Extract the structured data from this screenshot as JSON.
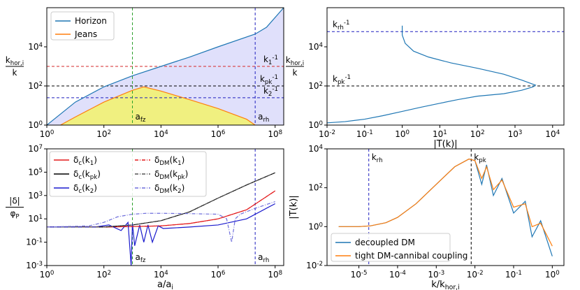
{
  "chart_data": [
    {
      "id": "tl",
      "type": "line",
      "xscale": "log",
      "yscale": "log",
      "xlim": [
        1,
        200000000
      ],
      "ylim": [
        1,
        1000000
      ],
      "xticks": [
        {
          "v": 1,
          "l": "10^0"
        },
        {
          "v": 100,
          "l": "10^2"
        },
        {
          "v": 10000,
          "l": "10^4"
        },
        {
          "v": 1000000,
          "l": "10^6"
        },
        {
          "v": 100000000,
          "l": "10^8"
        }
      ],
      "yticks": [
        {
          "v": 1,
          "l": "10^0"
        },
        {
          "v": 100,
          "l": "10^2"
        },
        {
          "v": 10000,
          "l": "10^4"
        }
      ],
      "ylabel_num": "k_{hor,i}",
      "ylabel_den": "k",
      "legend": {
        "position": "top-left",
        "entries": [
          {
            "label": "Horizon",
            "color": "#1f77b4"
          },
          {
            "label": "Jeans",
            "color": "#ff7f0e"
          }
        ]
      },
      "series": [
        {
          "name": "Horizon",
          "color": "#1f77b4",
          "fill": "#e0e0fb",
          "x": [
            1,
            10,
            100,
            1000,
            10000,
            100000,
            1000000,
            20000000,
            50000000,
            200000000
          ],
          "y": [
            1,
            15,
            90,
            330,
            1000,
            3000,
            10000,
            45000,
            100000,
            1000000
          ]
        },
        {
          "name": "Jeans",
          "color": "#ff7f0e",
          "fill": "#f0f080",
          "x": [
            3,
            10,
            100,
            1000,
            2500,
            10000,
            100000,
            1000000,
            10000000,
            20000000
          ],
          "y": [
            1,
            2.6,
            15,
            60,
            90,
            55,
            20,
            7,
            2,
            1
          ]
        }
      ],
      "hlines": [
        {
          "y": 1000,
          "color": "#d62728",
          "label": "k_1^{-1}"
        },
        {
          "y": 100,
          "color": "#000000",
          "label": "k_{pk}^{-1}"
        },
        {
          "y": 25,
          "color": "#1f1fbf",
          "label": "k_2^{-1}"
        }
      ],
      "vlines": [
        {
          "x": 1000,
          "color": "#2ca02c",
          "label": "a_{fz}"
        },
        {
          "x": 20000000,
          "color": "#1f1fbf",
          "label": "a_{rh}"
        }
      ]
    },
    {
      "id": "tr",
      "type": "line",
      "xscale": "log",
      "yscale": "log",
      "xlim": [
        0.01,
        20000
      ],
      "ylim": [
        1,
        1000000
      ],
      "xticks": [
        {
          "v": 0.01,
          "l": "10^{-2}"
        },
        {
          "v": 0.1,
          "l": "10^{-1}"
        },
        {
          "v": 1,
          "l": "10^0"
        },
        {
          "v": 10,
          "l": "10^1"
        },
        {
          "v": 100,
          "l": "10^2"
        },
        {
          "v": 1000,
          "l": "10^3"
        },
        {
          "v": 10000,
          "l": "10^4"
        }
      ],
      "yticks": [
        {
          "v": 1,
          "l": "10^0"
        },
        {
          "v": 100,
          "l": "10^2"
        },
        {
          "v": 10000,
          "l": "10^4"
        }
      ],
      "xlabel": "|T(k)|",
      "ylabel_num": "k_{hor,i}",
      "ylabel_den": "k",
      "series": [
        {
          "name": "|T(k)|",
          "color": "#1f77b4",
          "x": [
            1,
            1,
            1.2,
            2,
            5,
            20,
            100,
            500,
            1500,
            3500,
            3000,
            1500,
            500,
            100,
            30,
            10,
            3,
            1,
            0.3,
            0.1,
            0.03,
            0.01
          ],
          "y": [
            120000,
            40000,
            15000,
            6000,
            3000,
            1500,
            800,
            400,
            200,
            110,
            90,
            60,
            40,
            30,
            20,
            13,
            8,
            5,
            3,
            2,
            1.5,
            1.3
          ]
        }
      ],
      "hlines": [
        {
          "y": 60000,
          "color": "#1f1fbf",
          "label": "k_{rh}^{-1}"
        },
        {
          "y": 100,
          "color": "#000000",
          "label": "k_{pk}^{-1}"
        }
      ]
    },
    {
      "id": "bl",
      "type": "line",
      "xscale": "log",
      "yscale": "log",
      "xlim": [
        1,
        200000000
      ],
      "ylim": [
        0.001,
        10000000
      ],
      "xticks": [
        {
          "v": 1,
          "l": "10^0"
        },
        {
          "v": 100,
          "l": "10^2"
        },
        {
          "v": 10000,
          "l": "10^4"
        },
        {
          "v": 1000000,
          "l": "10^6"
        },
        {
          "v": 100000000,
          "l": "10^8"
        }
      ],
      "yticks": [
        {
          "v": 0.001,
          "l": "10^{-3}"
        },
        {
          "v": 0.1,
          "l": "10^{-1}"
        },
        {
          "v": 10,
          "l": "10^1"
        },
        {
          "v": 1000,
          "l": "10^3"
        },
        {
          "v": 100000,
          "l": "10^5"
        },
        {
          "v": 10000000,
          "l": "10^7"
        }
      ],
      "xlabel": "a/a_i",
      "ylabel_num": "|δ|",
      "ylabel_den": "φ_P",
      "legend": {
        "position": "top-left",
        "entries": [
          {
            "label": "δ_c(k_1)",
            "color": "#e31a1c",
            "dash": ""
          },
          {
            "label": "δ_c(k_{pk})",
            "color": "#000000",
            "dash": ""
          },
          {
            "label": "δ_c(k_2)",
            "color": "#1a1acd",
            "dash": ""
          },
          {
            "label": "δ_{DM}(k_1)",
            "color": "#e31a1c",
            "dash": "5,2,1,2"
          },
          {
            "label": "δ_{DM}(k_{pk})",
            "color": "#555555",
            "dash": "5,2,1,2"
          },
          {
            "label": "δ_{DM}(k_2)",
            "color": "#6f6fdc",
            "dash": "5,2,1,2"
          }
        ]
      },
      "series": [
        {
          "name": "δ_c(k_1)",
          "color": "#e31a1c",
          "dash": "",
          "x": [
            1,
            100,
            1000,
            10000,
            100000,
            1000000,
            10000000,
            100000000
          ],
          "y": [
            2,
            2,
            2.2,
            2.5,
            4,
            10,
            60,
            2500
          ]
        },
        {
          "name": "δ_c(k_pk)",
          "color": "#000000",
          "dash": "",
          "x": [
            1,
            100,
            1000,
            10000,
            100000,
            1000000,
            10000000,
            100000000
          ],
          "y": [
            2,
            2,
            3,
            7,
            40,
            600,
            8000,
            90000
          ]
        },
        {
          "name": "δ_c(k_2)",
          "color": "#1a1acd",
          "dash": "",
          "x": [
            1,
            50,
            150,
            400,
            700,
            900,
            1000,
            1200,
            1800,
            2500,
            3500,
            5000,
            8000,
            12000,
            20000,
            100000,
            1000000,
            10000000,
            100000000
          ],
          "y": [
            2,
            2,
            3,
            1,
            5,
            0.001,
            4,
            0.05,
            3,
            0.1,
            3,
            0.1,
            2.5,
            1.5,
            1.6,
            2,
            3,
            10,
            200
          ]
        },
        {
          "name": "δ_DM(k_1)",
          "color": "#e31a1c",
          "dash": "5,2,1,2",
          "x": [
            1,
            100,
            1000,
            10000,
            100000,
            1000000,
            10000000,
            100000000
          ],
          "y": [
            2,
            2,
            2.2,
            2.5,
            4,
            10,
            60,
            2500
          ]
        },
        {
          "name": "δ_DM(k_pk)",
          "color": "#555555",
          "dash": "5,2,1,2",
          "x": [
            1,
            100,
            1000,
            10000,
            100000,
            1000000,
            10000000,
            100000000
          ],
          "y": [
            2,
            2,
            3,
            7,
            40,
            600,
            8000,
            90000
          ]
        },
        {
          "name": "δ_DM(k_2)",
          "color": "#6f6fdc",
          "dash": "5,2,1,2",
          "x": [
            1,
            30,
            100,
            300,
            1000,
            3000,
            10000,
            100000,
            1000000,
            2000000,
            3000000,
            4000000,
            6000000,
            20000000,
            100000000
          ],
          "y": [
            2,
            2.5,
            5,
            15,
            25,
            30,
            30,
            28,
            25,
            10,
            0.1,
            10,
            25,
            80,
            300
          ]
        }
      ],
      "vlines": [
        {
          "x": 1000,
          "color": "#2ca02c",
          "label": "a_{fz}"
        },
        {
          "x": 20000000,
          "color": "#1f1fbf",
          "label": "a_{rh}"
        }
      ]
    },
    {
      "id": "br",
      "type": "line",
      "xscale": "log",
      "yscale": "log",
      "xlim": [
        1.5e-06,
        2
      ],
      "ylim": [
        0.01,
        10000
      ],
      "xticks": [
        {
          "v": 1e-05,
          "l": "10^{-5}"
        },
        {
          "v": 0.0001,
          "l": "10^{-4}"
        },
        {
          "v": 0.001,
          "l": "10^{-3}"
        },
        {
          "v": 0.01,
          "l": "10^{-2}"
        },
        {
          "v": 0.1,
          "l": "10^{-1}"
        },
        {
          "v": 1,
          "l": "10^0"
        }
      ],
      "yticks": [
        {
          "v": 0.01,
          "l": "10^{-2}"
        },
        {
          "v": 1,
          "l": "10^0"
        },
        {
          "v": 100,
          "l": "10^2"
        },
        {
          "v": 10000,
          "l": "10^4"
        }
      ],
      "xlabel": "k/k_{hor,i}",
      "ylabel": "|T(k)|",
      "legend": {
        "position": "bottom-left",
        "entries": [
          {
            "label": "decoupled DM",
            "color": "#1f77b4"
          },
          {
            "label": "tight DM-cannibal coupling",
            "color": "#ff7f0e"
          }
        ]
      },
      "series": [
        {
          "name": "decoupled DM",
          "color": "#1f77b4",
          "x": [
            3e-06,
            1e-05,
            2e-05,
            5e-05,
            0.0001,
            0.0003,
            0.001,
            0.003,
            0.007,
            0.01,
            0.015,
            0.02,
            0.03,
            0.05,
            0.1,
            0.2,
            0.3,
            0.5,
            1
          ],
          "y": [
            1,
            1,
            1.1,
            1.6,
            3,
            15,
            150,
            1200,
            3000,
            2500,
            150,
            1500,
            40,
            300,
            5,
            20,
            0.3,
            2,
            0.03
          ]
        },
        {
          "name": "tight DM-cannibal coupling",
          "color": "#ff7f0e",
          "x": [
            3e-06,
            1e-05,
            2e-05,
            5e-05,
            0.0001,
            0.0003,
            0.001,
            0.003,
            0.007,
            0.01,
            0.015,
            0.02,
            0.03,
            0.05,
            0.1,
            0.2,
            0.3,
            0.5,
            1
          ],
          "y": [
            1,
            1,
            1.1,
            1.6,
            3,
            15,
            150,
            1200,
            3000,
            2500,
            300,
            1200,
            80,
            250,
            10,
            15,
            1,
            1.5,
            0.1
          ]
        }
      ],
      "vlines": [
        {
          "x": 1.8e-05,
          "color": "#1f1fbf",
          "label": "k_{rh}"
        },
        {
          "x": 0.008,
          "color": "#000000",
          "label": "k_{pk}"
        }
      ]
    }
  ]
}
